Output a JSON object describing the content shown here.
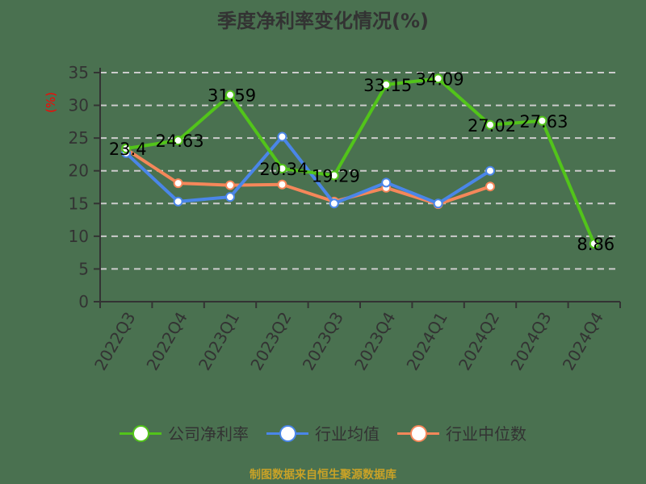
{
  "title": "季度净利率变化情况(%)",
  "y_axis_unit": "(%)",
  "footer": "制图数据来自恒生聚源数据库",
  "legend": [
    {
      "label": "公司净利率",
      "color": "#52c41a"
    },
    {
      "label": "行业均值",
      "color": "#4a86e8"
    },
    {
      "label": "行业中位数",
      "color": "#f5875a"
    }
  ],
  "chart_data": {
    "type": "line",
    "title": "季度净利率变化情况(%)",
    "xlabel": "",
    "ylabel": "(%)",
    "ylim": [
      0,
      35
    ],
    "yticks": [
      0,
      5,
      10,
      15,
      20,
      25,
      30,
      35
    ],
    "grid": "horizontal dashed",
    "legend_position": "bottom",
    "categories": [
      "2022Q3",
      "2022Q4",
      "2023Q1",
      "2023Q2",
      "2023Q3",
      "2023Q4",
      "2024Q1",
      "2024Q2",
      "2024Q3",
      "2024Q4"
    ],
    "series": [
      {
        "name": "公司净利率",
        "color": "#52c41a",
        "values": [
          23.4,
          24.63,
          31.59,
          20.34,
          19.29,
          33.15,
          34.09,
          27.02,
          27.63,
          8.86
        ],
        "labels_shown": true
      },
      {
        "name": "行业均值",
        "color": "#4a86e8",
        "values": [
          22.7,
          15.3,
          16.0,
          25.2,
          15.0,
          18.2,
          15.0,
          20.0,
          null,
          null
        ]
      },
      {
        "name": "行业中位数",
        "color": "#f5875a",
        "values": [
          23.3,
          18.1,
          17.8,
          17.9,
          15.3,
          17.4,
          14.9,
          17.6,
          null,
          null
        ]
      }
    ]
  }
}
